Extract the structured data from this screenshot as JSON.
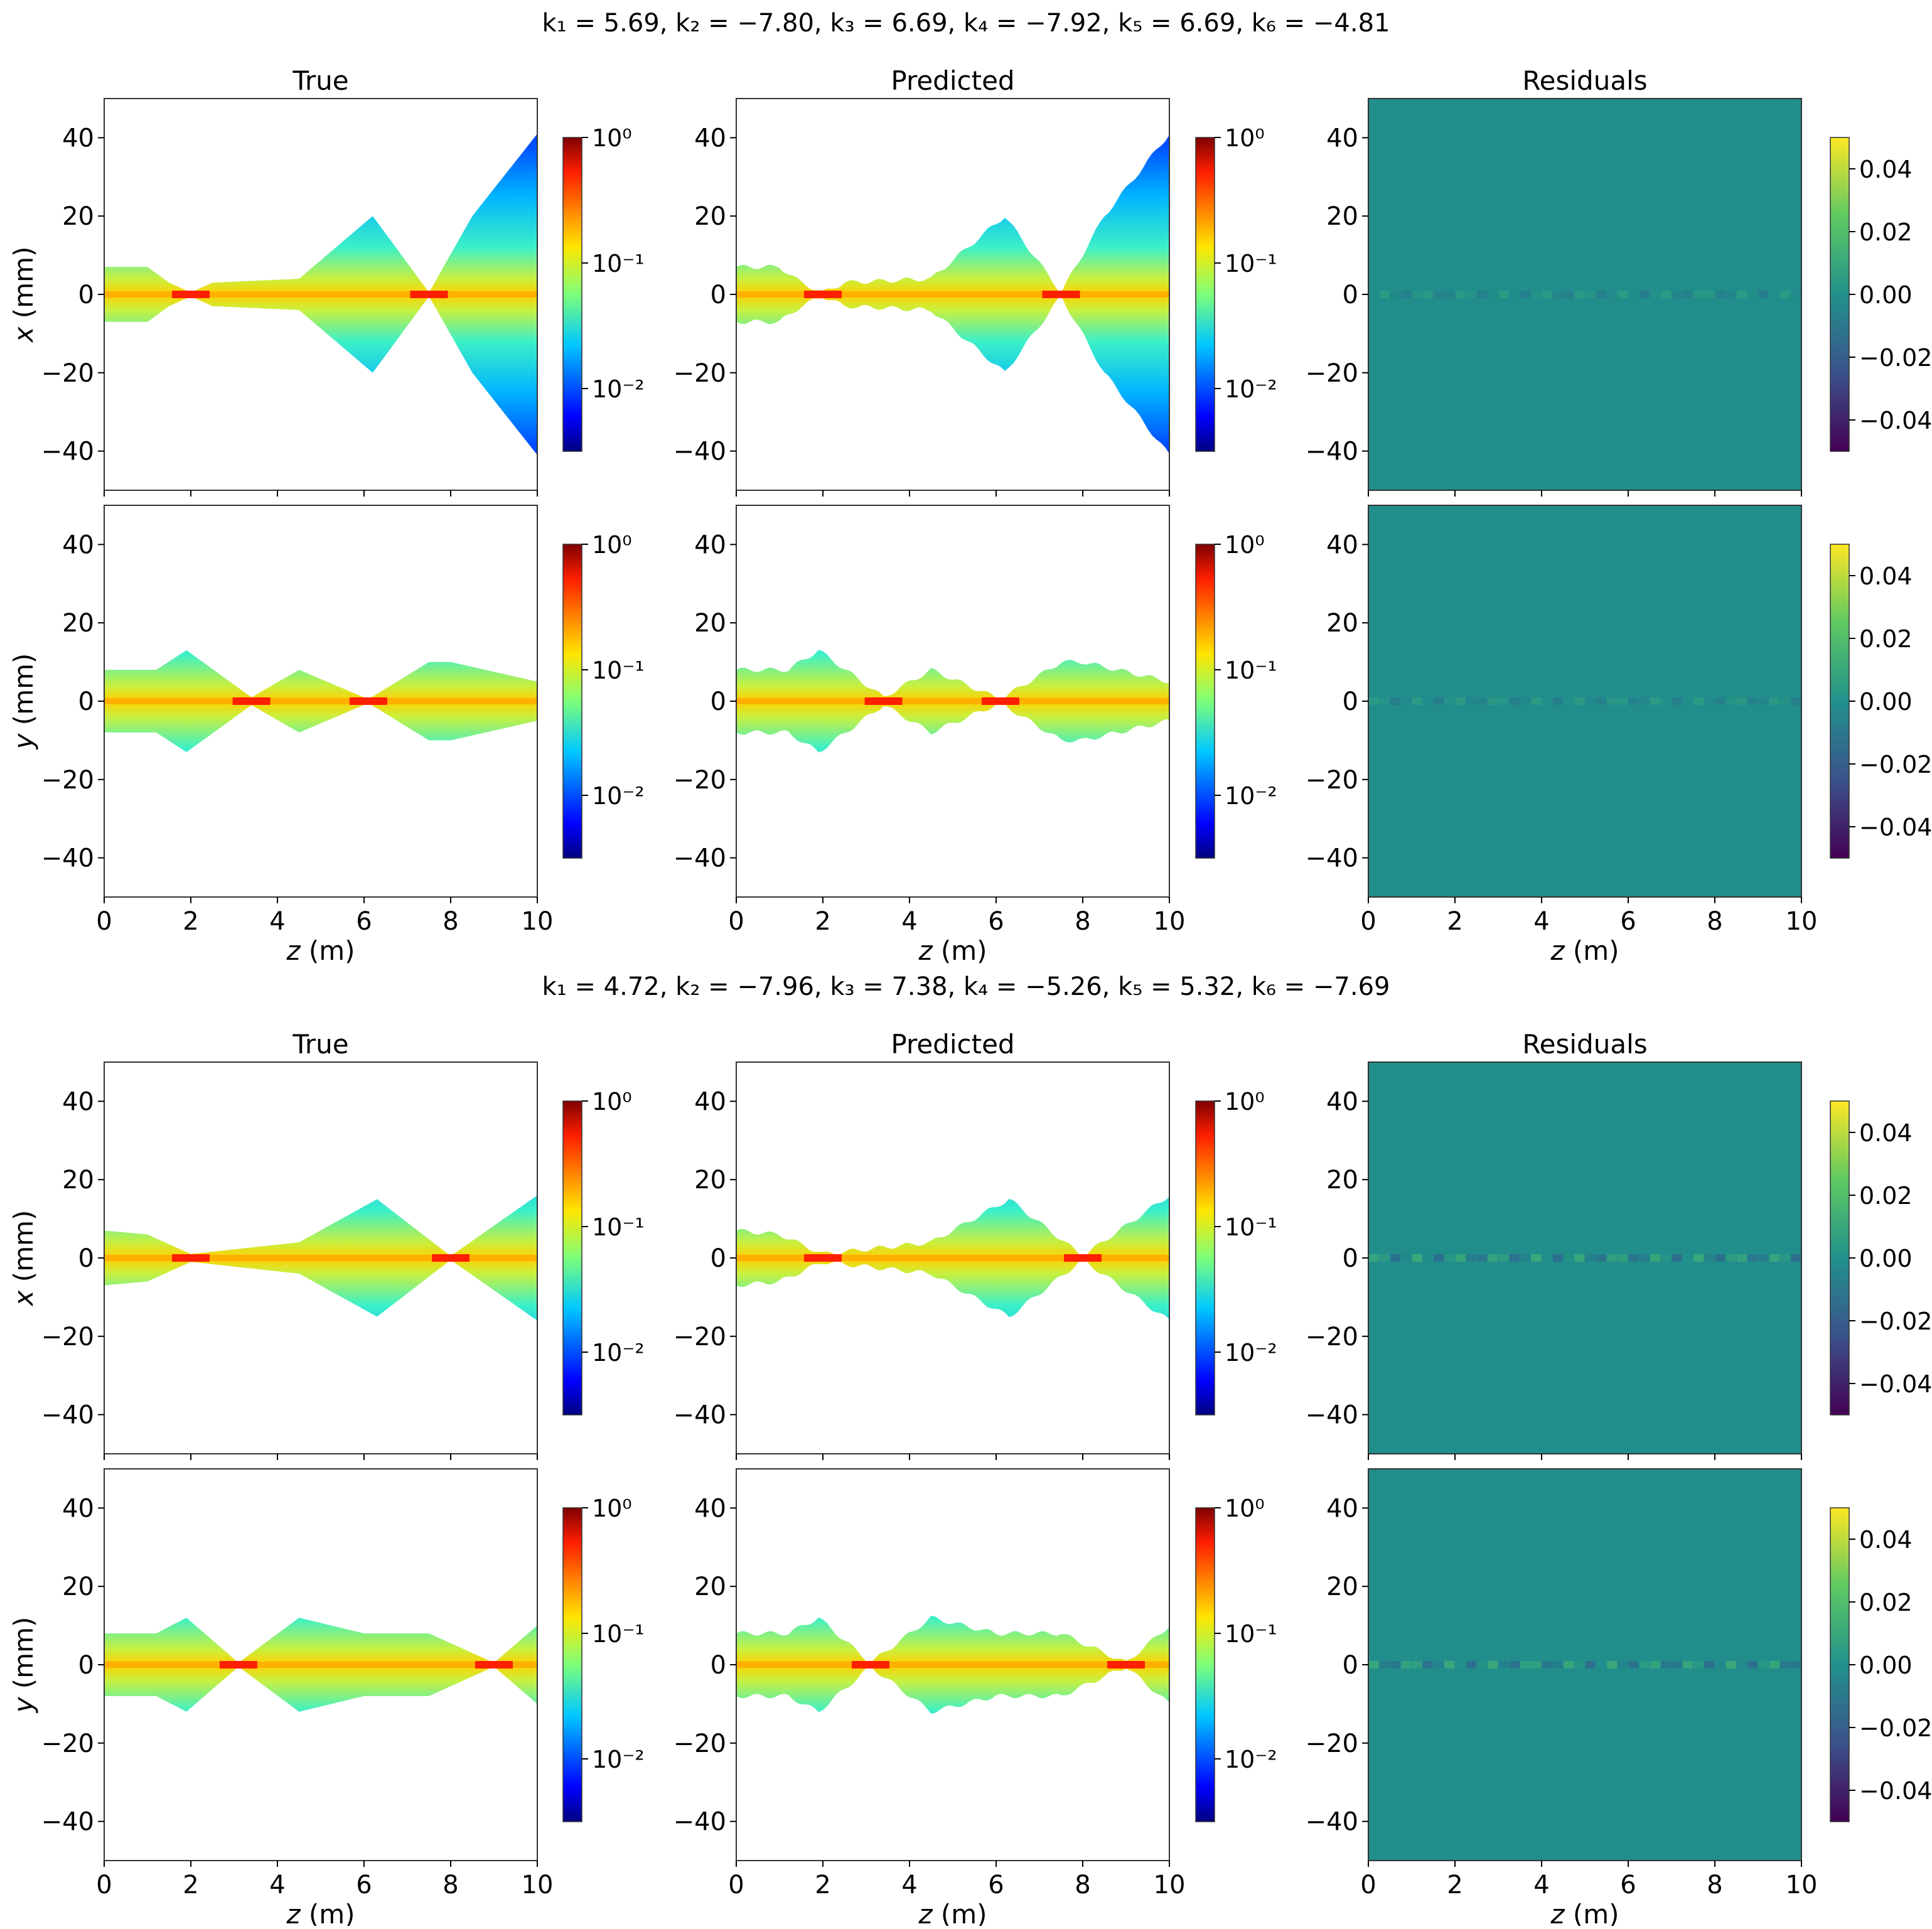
{
  "figures": [
    {
      "title": "k₁ = 5.69, k₂ = −7.80, k₃ = 6.69, k₄ = −7.92, k₅ = 6.69, k₆ = −4.81",
      "col_titles": [
        "True",
        "Predicted",
        "Residuals"
      ],
      "row_labels": [
        "x (mm)",
        "y (mm)"
      ],
      "xlabel": "z (m)"
    },
    {
      "title": "k₁ = 4.72, k₂ = −7.96, k₃ = 7.38, k₄ = −5.26, k₅ = 5.32, k₆ = −7.69",
      "col_titles": [
        "True",
        "Predicted",
        "Residuals"
      ],
      "row_labels": [
        "x (mm)",
        "y (mm)"
      ],
      "xlabel": "z (m)"
    }
  ],
  "axes": {
    "x_ticks": [
      "0",
      "2",
      "4",
      "6",
      "8",
      "10"
    ],
    "y_ticks": [
      "40",
      "20",
      "0",
      "−20",
      "−40"
    ],
    "log_cb_ticks": [
      "10⁰",
      "10⁻¹",
      "10⁻²"
    ],
    "res_cb_ticks": [
      "0.04",
      "0.02",
      "0.00",
      "−0.02",
      "−0.04"
    ]
  },
  "colors": {
    "residual_bg": "#218e8c",
    "panel_bg": "#ffffff",
    "axes_edge": "#333333"
  },
  "chart_data": [
    {
      "type": "heatmap",
      "title": "k₁ = 5.69, k₂ = −7.80, k₃ = 6.69, k₄ = −7.92, k₅ = 6.69, k₆ = −4.81",
      "xlabel": "z (m)",
      "xlim": [
        0,
        10
      ],
      "ylim": [
        -50,
        50
      ],
      "colorbar_beam": {
        "scale": "log",
        "range": [
          0.003,
          1
        ]
      },
      "colorbar_residual": {
        "scale": "linear",
        "range": [
          -0.05,
          0.05
        ]
      },
      "beam_envelope_x_mm": {
        "z": [
          0,
          1,
          1.5,
          2,
          2.5,
          4.5,
          6.2,
          7.5,
          8.5,
          10
        ],
        "half_width": [
          7,
          7,
          3,
          0.5,
          3,
          4,
          20,
          0.5,
          20,
          41
        ]
      },
      "beam_envelope_y_mm": {
        "z": [
          0,
          1.2,
          1.9,
          3.4,
          4.5,
          6.1,
          7.5,
          8,
          10
        ],
        "half_width": [
          8,
          8,
          13,
          1,
          8,
          0.5,
          10,
          10,
          5
        ]
      },
      "residual_max_abs": 0.01
    },
    {
      "type": "heatmap",
      "title": "k₁ = 4.72, k₂ = −7.96, k₃ = 7.38, k₄ = −5.26, k₅ = 5.32, k₆ = −7.69",
      "xlabel": "z (m)",
      "xlim": [
        0,
        10
      ],
      "ylim": [
        -50,
        50
      ],
      "colorbar_beam": {
        "scale": "log",
        "range": [
          0.003,
          1
        ]
      },
      "colorbar_residual": {
        "scale": "linear",
        "range": [
          -0.05,
          0.05
        ]
      },
      "beam_envelope_x_mm": {
        "z": [
          0,
          1,
          2,
          4.5,
          6.3,
          8,
          10
        ],
        "half_width": [
          7,
          6,
          1,
          4,
          15,
          0.5,
          16
        ]
      },
      "beam_envelope_y_mm": {
        "z": [
          0,
          1.2,
          1.9,
          3.1,
          4.5,
          6,
          7.5,
          9,
          10
        ],
        "half_width": [
          8,
          8,
          12,
          0.5,
          12,
          8,
          8,
          0.5,
          10
        ]
      },
      "residual_max_abs": 0.02
    }
  ]
}
